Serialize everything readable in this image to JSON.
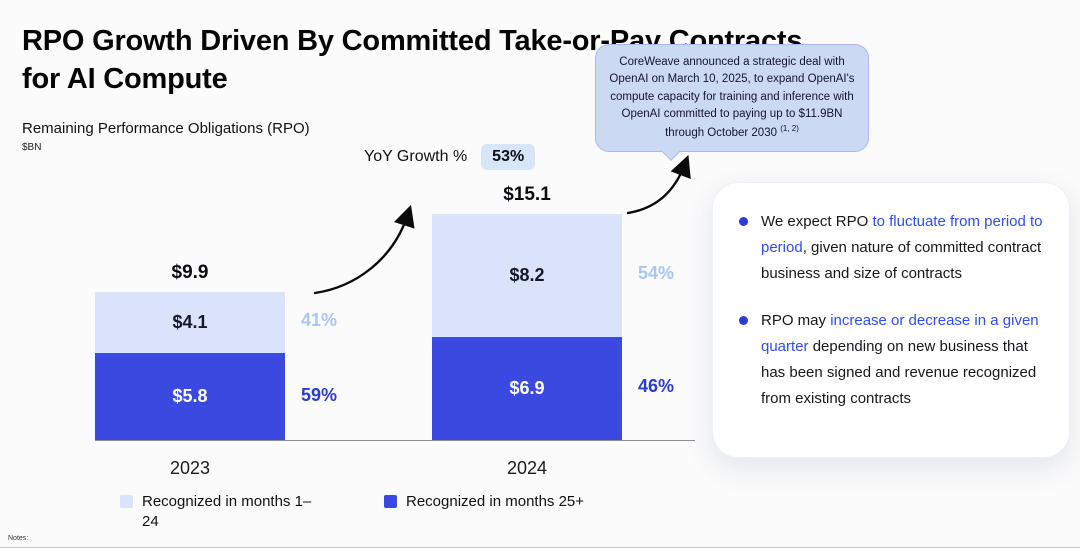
{
  "title": {
    "line1": "RPO Growth Driven By Committed Take-or-Pay Contracts",
    "line2": "for AI Compute"
  },
  "subtitle": "Remaining Performance Obligations (RPO)",
  "unit": "$BN",
  "yoy": {
    "label": "YoY Growth %",
    "value": "53%"
  },
  "callout": {
    "text": "CoreWeave announced a strategic deal with OpenAI on March 10, 2025, to expand OpenAI's compute capacity for training and inference with OpenAI committed to paying up to $11.9BN through October 2030",
    "footnote": "(1, 2)"
  },
  "chart_data": {
    "type": "bar",
    "stacked": true,
    "title": "Remaining Performance Obligations (RPO)",
    "ylabel": "$BN",
    "categories": [
      "2023",
      "2024"
    ],
    "totals": [
      "$9.9",
      "$15.1"
    ],
    "yoy_growth_pct": "53%",
    "series": [
      {
        "name": "Recognized in months 25+",
        "values": [
          5.8,
          6.9
        ],
        "value_labels": [
          "$5.8",
          "$6.9"
        ],
        "pct_labels": [
          "59%",
          "46%"
        ],
        "color": "#3a49e0",
        "text_color": "#ffffff",
        "pct_color": "#2b3ad0"
      },
      {
        "name": "Recognized in months 1–24",
        "values": [
          4.1,
          8.2
        ],
        "value_labels": [
          "$4.1",
          "$8.2"
        ],
        "pct_labels": [
          "41%",
          "54%"
        ],
        "color": "#dbe3fa",
        "text_color": "#15172e",
        "pct_color": "#a8c6f0"
      }
    ]
  },
  "legend": [
    {
      "label": "Recognized in months 1–24",
      "color": "#dbe3fa"
    },
    {
      "label": "Recognized in months 25+",
      "color": "#3a49e0"
    }
  ],
  "bullets": [
    {
      "segments": [
        {
          "text": "We expect RPO ",
          "style": "plain"
        },
        {
          "text": "to fluctuate from period to period",
          "style": "blue"
        },
        {
          "text": ", given nature of committed contract business and size of contracts",
          "style": "plain"
        }
      ]
    },
    {
      "segments": [
        {
          "text": "RPO may ",
          "style": "plain"
        },
        {
          "text": "increase or decrease in a given quarter",
          "style": "blue"
        },
        {
          "text": " depending on new business that has been signed and revenue recognized from existing contracts",
          "style": "plain"
        }
      ]
    }
  ],
  "notes": "Notes:"
}
